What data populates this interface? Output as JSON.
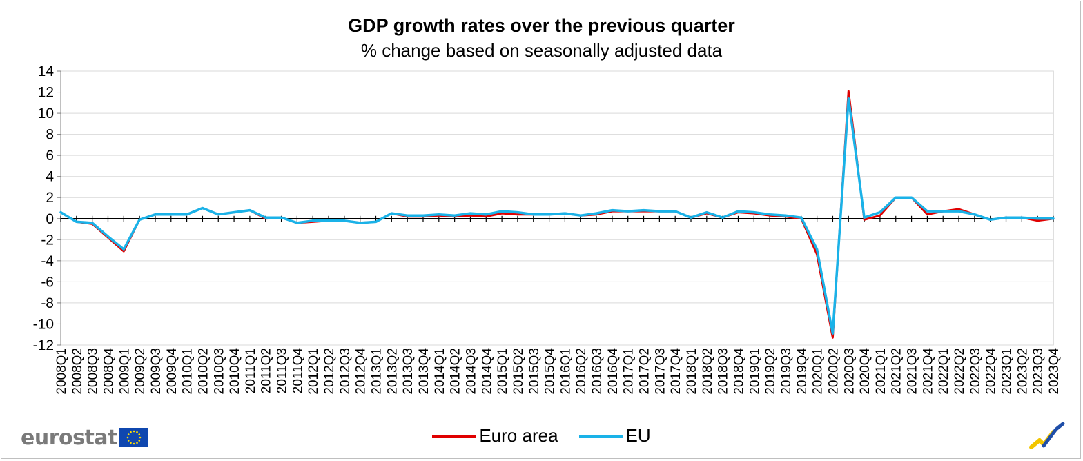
{
  "chart_data": {
    "type": "line",
    "title": "GDP growth rates over the previous quarter",
    "subtitle": "% change based on seasonally adjusted data",
    "xlabel": "",
    "ylabel": "",
    "ylim": [
      -12,
      14
    ],
    "yticks": [
      -12,
      -10,
      -8,
      -6,
      -4,
      -2,
      0,
      2,
      4,
      6,
      8,
      10,
      12,
      14
    ],
    "grid": true,
    "legend_position": "bottom-center",
    "x": [
      "2008Q1",
      "2008Q2",
      "2008Q3",
      "2008Q4",
      "2009Q1",
      "2009Q2",
      "2009Q3",
      "2009Q4",
      "2010Q1",
      "2010Q2",
      "2010Q3",
      "2010Q4",
      "2011Q1",
      "2011Q2",
      "2011Q3",
      "2011Q4",
      "2012Q1",
      "2012Q2",
      "2012Q3",
      "2012Q4",
      "2013Q1",
      "2013Q2",
      "2013Q3",
      "2013Q4",
      "2014Q1",
      "2014Q2",
      "2014Q3",
      "2014Q4",
      "2015Q1",
      "2015Q2",
      "2015Q3",
      "2015Q4",
      "2016Q1",
      "2016Q2",
      "2016Q3",
      "2016Q4",
      "2017Q1",
      "2017Q2",
      "2017Q3",
      "2017Q4",
      "2018Q1",
      "2018Q2",
      "2018Q3",
      "2018Q4",
      "2019Q1",
      "2019Q2",
      "2019Q3",
      "2019Q4",
      "2020Q1",
      "2020Q2",
      "2020Q3",
      "2020Q4",
      "2021Q1",
      "2021Q2",
      "2021Q3",
      "2021Q4",
      "2022Q1",
      "2022Q2",
      "2022Q3",
      "2022Q4",
      "2023Q1",
      "2023Q2",
      "2023Q3",
      "2023Q4"
    ],
    "series": [
      {
        "name": "Euro area",
        "color": "#e00000",
        "values": [
          0.6,
          -0.3,
          -0.5,
          -1.8,
          -3.1,
          -0.1,
          0.4,
          0.4,
          0.4,
          1.0,
          0.4,
          0.6,
          0.8,
          0.0,
          0.1,
          -0.4,
          -0.3,
          -0.2,
          -0.2,
          -0.4,
          -0.3,
          0.5,
          0.2,
          0.2,
          0.3,
          0.2,
          0.3,
          0.2,
          0.5,
          0.4,
          0.4,
          0.4,
          0.5,
          0.3,
          0.4,
          0.7,
          0.7,
          0.7,
          0.7,
          0.7,
          0.1,
          0.5,
          0.1,
          0.6,
          0.5,
          0.3,
          0.2,
          0.0,
          -3.4,
          -11.3,
          12.1,
          -0.1,
          0.3,
          2.0,
          2.0,
          0.4,
          0.7,
          0.9,
          0.4,
          -0.1,
          0.1,
          0.1,
          -0.2,
          0.0
        ]
      },
      {
        "name": "EU",
        "color": "#1ab2e8",
        "values": [
          0.6,
          -0.3,
          -0.4,
          -1.7,
          -2.9,
          -0.1,
          0.4,
          0.4,
          0.4,
          1.0,
          0.4,
          0.6,
          0.8,
          0.1,
          0.1,
          -0.4,
          -0.2,
          -0.2,
          -0.2,
          -0.4,
          -0.3,
          0.5,
          0.3,
          0.3,
          0.4,
          0.3,
          0.5,
          0.4,
          0.7,
          0.6,
          0.4,
          0.4,
          0.5,
          0.3,
          0.5,
          0.8,
          0.7,
          0.8,
          0.7,
          0.7,
          0.1,
          0.6,
          0.1,
          0.7,
          0.6,
          0.4,
          0.3,
          0.1,
          -2.9,
          -10.9,
          11.4,
          0.1,
          0.6,
          2.0,
          2.0,
          0.7,
          0.7,
          0.7,
          0.4,
          -0.1,
          0.1,
          0.1,
          0.0,
          0.0
        ]
      }
    ]
  },
  "footer": {
    "logo_text": "eurostat",
    "logo_icon": "eu-flag-icon",
    "corner_icon": "eurostat-check-mark-icon"
  }
}
